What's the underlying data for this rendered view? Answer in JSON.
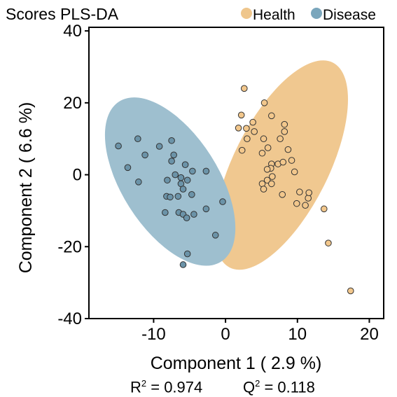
{
  "chart_data": {
    "type": "scatter",
    "title": "Scores PLS-DA",
    "xlabel": "Component 1 ( 2.9 %)",
    "ylabel": "Component 2 ( 6.6 %)",
    "xlim": [
      -19,
      22
    ],
    "ylim": [
      -40,
      41
    ],
    "xticks": [
      -10,
      0,
      10,
      20
    ],
    "yticks": [
      -40,
      -20,
      0,
      20,
      40
    ],
    "grid": false,
    "legend_position": "top-right",
    "series": [
      {
        "name": "Health",
        "color": "#EFC68C",
        "ellipse_color": "#F0C890",
        "marker_color": "#F2C78C",
        "points": [
          [
            2.6,
            24
          ],
          [
            5.4,
            20
          ],
          [
            6.4,
            16.4
          ],
          [
            2.2,
            16.6
          ],
          [
            3.8,
            14.6
          ],
          [
            2.9,
            12.9
          ],
          [
            8.2,
            14
          ],
          [
            1.8,
            13
          ],
          [
            4,
            12
          ],
          [
            8.2,
            12
          ],
          [
            7.6,
            10
          ],
          [
            3,
            10
          ],
          [
            5.3,
            10
          ],
          [
            5.9,
            7.5
          ],
          [
            8.7,
            7
          ],
          [
            2.3,
            6.8
          ],
          [
            5.1,
            6
          ],
          [
            9.2,
            4
          ],
          [
            6.4,
            3
          ],
          [
            7.3,
            3
          ],
          [
            8,
            3.5
          ],
          [
            6.3,
            1.8
          ],
          [
            5.8,
            1.5
          ],
          [
            9.6,
            0.8
          ],
          [
            6.5,
            -0.5
          ],
          [
            5.8,
            -1.5
          ],
          [
            6.4,
            -2.5
          ],
          [
            5.1,
            -2.5
          ],
          [
            5.3,
            -4
          ],
          [
            7.9,
            -5.5
          ],
          [
            10.3,
            -4.8
          ],
          [
            11.5,
            -6.5
          ],
          [
            11.6,
            -5
          ],
          [
            9.9,
            -8
          ],
          [
            11.1,
            -8.5
          ],
          [
            13.7,
            -9.5
          ],
          [
            14.3,
            -19
          ],
          [
            17.4,
            -32.3
          ]
        ]
      },
      {
        "name": "Disease",
        "color": "#7AA6BC",
        "ellipse_color": "#9EBFCF",
        "marker_color": "#6B93A8",
        "points": [
          [
            -14.9,
            8
          ],
          [
            -12.2,
            10
          ],
          [
            -9.2,
            7.9
          ],
          [
            -7.5,
            9.5
          ],
          [
            -11.2,
            5.5
          ],
          [
            -7.2,
            5.5
          ],
          [
            -7.5,
            3.8
          ],
          [
            -13.6,
            2
          ],
          [
            -12.1,
            -2
          ],
          [
            -5.6,
            2.8
          ],
          [
            -4.6,
            1
          ],
          [
            -2.7,
            1
          ],
          [
            -7,
            0
          ],
          [
            -6.2,
            -0.8
          ],
          [
            -5.3,
            -1.5
          ],
          [
            -6.2,
            -2.5
          ],
          [
            -8.1,
            -1.5
          ],
          [
            -5.9,
            -4
          ],
          [
            -4.7,
            -5.5
          ],
          [
            -8.2,
            -6
          ],
          [
            -7.7,
            -6.2
          ],
          [
            -6.6,
            -6
          ],
          [
            -0.4,
            -7.5
          ],
          [
            -2.7,
            -9.5
          ],
          [
            -8.4,
            -10.5
          ],
          [
            -6.5,
            -10.5
          ],
          [
            -5.9,
            -11
          ],
          [
            -4.4,
            -11
          ],
          [
            -5.4,
            -12
          ],
          [
            -1.4,
            -16.8
          ],
          [
            -5.3,
            -22
          ],
          [
            -5.9,
            -25
          ]
        ]
      }
    ],
    "ellipses": [
      {
        "series": "Health",
        "cx": 7.75,
        "cy": 2.7,
        "rx": 6.6,
        "ry": 31.9,
        "rotation": 26.7
      },
      {
        "series": "Disease",
        "cx": -7.7,
        "cy": -1.9,
        "rx": 6.7,
        "ry": 26.4,
        "rotation": -32.5
      }
    ],
    "annotations": {
      "r2_label": "R",
      "r2_exp": "2",
      "r2_text": " = 0.974",
      "q2_label": "Q",
      "q2_exp": "2",
      "q2_text": " = 0.118"
    }
  }
}
